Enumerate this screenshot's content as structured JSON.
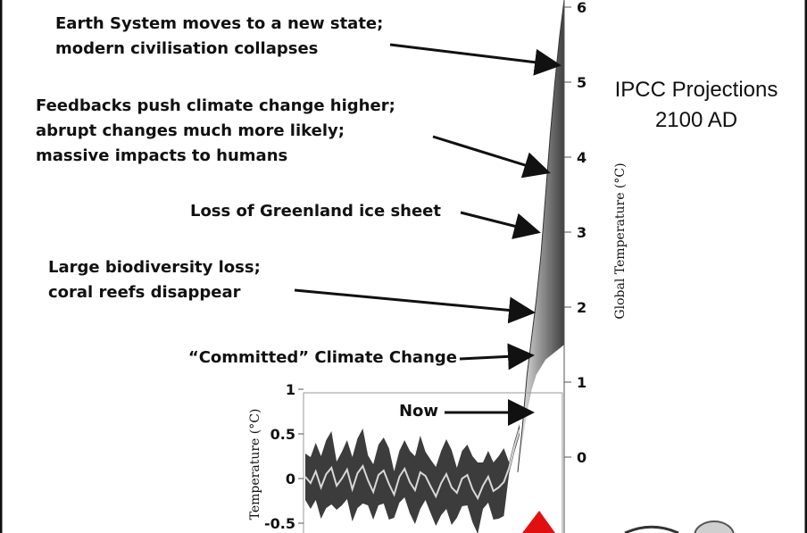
{
  "chart_data": [
    {
      "type": "area",
      "title": "IPCC Projections",
      "subtitle": "2100 AD",
      "ylabel": "Global Temperature (°C)",
      "ylim": [
        -1,
        6
      ],
      "yticks": [
        "0",
        "1",
        "2",
        "3",
        "4",
        "5",
        "6"
      ],
      "series": [
        {
          "values": [
            -0.2,
            0.4,
            1.1,
            1.6,
            2.1,
            2.7,
            3.5,
            4.3,
            5.0,
            5.6,
            6.1
          ]
        }
      ],
      "lower_band": [
        -0.2,
        0.2,
        0.6,
        0.9,
        1.1,
        1.2,
        1.3,
        1.35,
        1.4,
        1.45,
        1.5
      ],
      "annotations": [
        {
          "name": "collapse",
          "text": [
            "Earth System moves to a new state;",
            "modern civilisation collapses"
          ],
          "at": 5.2
        },
        {
          "name": "feedbacks",
          "text": [
            "Feedbacks push climate change higher;",
            "abrupt changes much more likely;",
            "massive impacts to humans"
          ],
          "at": 4.0
        },
        {
          "name": "greenland",
          "text": [
            "Loss of Greenland ice sheet"
          ],
          "at": 3.0
        },
        {
          "name": "biodiversity",
          "text": [
            "Large biodiversity loss;",
            "coral reefs disappear"
          ],
          "at": 2.0
        },
        {
          "name": "committed",
          "text": [
            "“Committed” Climate Change"
          ],
          "at": 1.4
        },
        {
          "name": "now",
          "text": [
            "Now"
          ],
          "at": 0.6
        }
      ]
    },
    {
      "type": "line",
      "ylabel": "Temperature (°C)",
      "ylim": [
        -0.6,
        1.0
      ],
      "yticks": [
        "1",
        "0.5",
        "0",
        "-0.5"
      ],
      "series": [
        {
          "values": [
            0.02,
            -0.05,
            0.08,
            -0.1,
            0.05,
            0.12,
            -0.08,
            0.0,
            0.1,
            -0.12,
            0.06,
            0.14,
            -0.02,
            -0.15,
            0.04,
            0.09,
            -0.06,
            -0.18,
            0.02,
            0.11,
            -0.04,
            -0.13,
            0.07,
            0.03,
            -0.09,
            -0.2,
            -0.05,
            0.05,
            -0.1,
            -0.16,
            0.0,
            0.04,
            -0.12,
            -0.22,
            -0.08,
            0.02,
            -0.14,
            -0.1,
            -0.04,
            0.12,
            0.35,
            0.55
          ]
        }
      ]
    }
  ]
}
